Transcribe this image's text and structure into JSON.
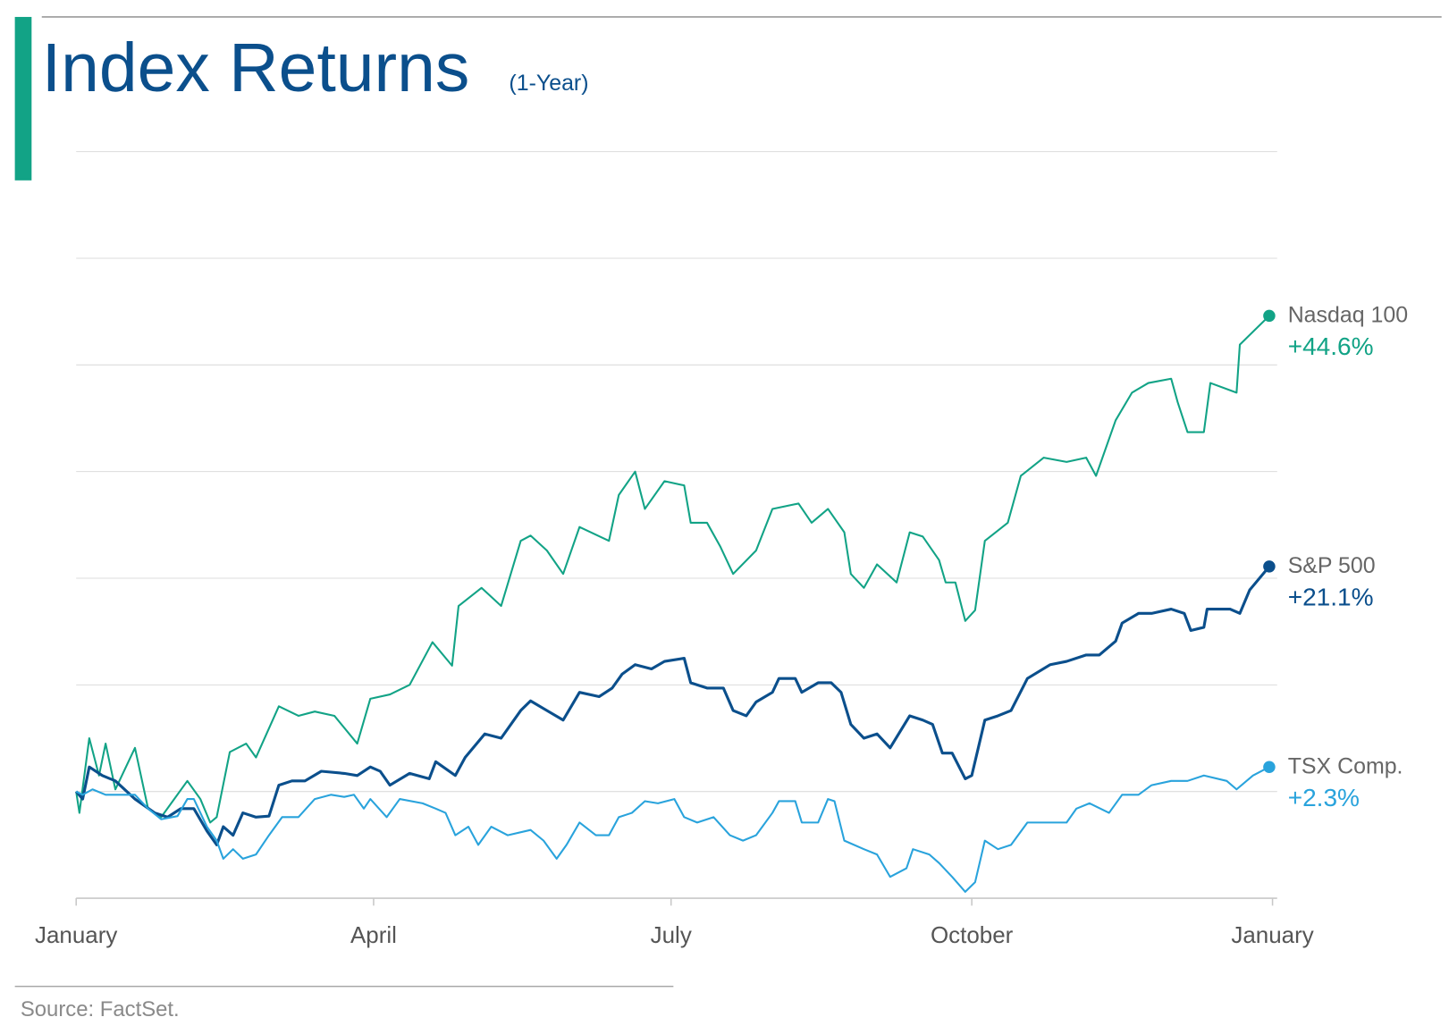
{
  "chart_data": {
    "type": "line",
    "title": "Index Returns",
    "subtitle": "(1-Year)",
    "source": "Source: FactSet.",
    "xlim": [
      0,
      366
    ],
    "xticks": [
      {
        "value": 0,
        "label": "January"
      },
      {
        "value": 91,
        "label": "April"
      },
      {
        "value": 182,
        "label": "July"
      },
      {
        "value": 274,
        "label": "October"
      },
      {
        "value": 366,
        "label": "January"
      }
    ],
    "ylim": [
      -10,
      60
    ],
    "yticks": [
      -10,
      0,
      10,
      20,
      30,
      40,
      50,
      60
    ],
    "grid": true,
    "series": [
      {
        "name": "Nasdaq 100",
        "color": "#12a386",
        "end_label": "+44.6%",
        "x": [
          0,
          1,
          4,
          7,
          9,
          12,
          18,
          22,
          26,
          34,
          38,
          41,
          43,
          47,
          52,
          55,
          62,
          68,
          73,
          79,
          86,
          90,
          96,
          102,
          109,
          115,
          117,
          124,
          130,
          136,
          139,
          144,
          149,
          154,
          163,
          166,
          171,
          174,
          180,
          186,
          188,
          193,
          197,
          201,
          208,
          213,
          221,
          225,
          230,
          235,
          237,
          241,
          245,
          251,
          255,
          259,
          264,
          266,
          269,
          272,
          275,
          278,
          285,
          289,
          296,
          303,
          309,
          312,
          318,
          323,
          328,
          335,
          337,
          340,
          345,
          347,
          355,
          356,
          362,
          365
        ],
        "values": [
          0,
          -2.0,
          5.0,
          1.5,
          4.5,
          0.2,
          4.1,
          -1.6,
          -2.4,
          1.0,
          -0.7,
          -2.9,
          -2.4,
          3.7,
          4.5,
          3.2,
          8.0,
          7.1,
          7.5,
          7.1,
          4.5,
          8.7,
          9.1,
          10.0,
          14.0,
          11.8,
          17.4,
          19.1,
          17.4,
          23.5,
          24.0,
          22.6,
          20.4,
          24.8,
          23.5,
          27.8,
          30.0,
          26.5,
          29.1,
          28.7,
          25.2,
          25.2,
          23.0,
          20.4,
          22.6,
          26.5,
          27.0,
          25.2,
          26.5,
          24.3,
          20.4,
          19.1,
          21.3,
          19.6,
          24.3,
          23.9,
          21.7,
          19.6,
          19.6,
          16.0,
          17.0,
          23.5,
          25.2,
          29.6,
          31.3,
          30.9,
          31.3,
          29.6,
          34.8,
          37.4,
          38.3,
          38.7,
          36.5,
          33.7,
          33.7,
          38.3,
          37.4,
          41.9,
          43.7,
          44.6
        ]
      },
      {
        "name": "S&P 500",
        "color": "#0b4f8c",
        "end_label": "+21.1%",
        "x": [
          0,
          2,
          4,
          8,
          12,
          18,
          24,
          28,
          32,
          36,
          40,
          43,
          45,
          48,
          51,
          55,
          59,
          62,
          66,
          70,
          75,
          82,
          86,
          90,
          93,
          96,
          102,
          108,
          110,
          116,
          119,
          125,
          130,
          136,
          139,
          144,
          149,
          154,
          160,
          164,
          167,
          171,
          176,
          180,
          186,
          188,
          193,
          198,
          201,
          205,
          208,
          213,
          215,
          220,
          222,
          227,
          231,
          234,
          237,
          241,
          245,
          249,
          255,
          259,
          262,
          265,
          268,
          272,
          274,
          278,
          282,
          286,
          291,
          298,
          303,
          309,
          313,
          318,
          320,
          325,
          329,
          335,
          339,
          341,
          345,
          346,
          353,
          356,
          359,
          365
        ],
        "values": [
          0,
          -0.7,
          2.3,
          1.5,
          1.0,
          -0.7,
          -2.0,
          -2.4,
          -1.6,
          -1.6,
          -3.7,
          -5.0,
          -3.3,
          -4.1,
          -2.0,
          -2.4,
          -2.3,
          0.6,
          1.0,
          1.0,
          1.9,
          1.7,
          1.5,
          2.3,
          1.9,
          0.6,
          1.7,
          1.2,
          2.8,
          1.5,
          3.2,
          5.4,
          5.0,
          7.6,
          8.5,
          7.6,
          6.7,
          9.3,
          8.9,
          9.7,
          11.0,
          11.9,
          11.5,
          12.2,
          12.5,
          10.2,
          9.7,
          9.7,
          7.6,
          7.1,
          8.4,
          9.3,
          10.6,
          10.6,
          9.3,
          10.2,
          10.2,
          9.3,
          6.3,
          5.0,
          5.4,
          4.1,
          7.1,
          6.7,
          6.3,
          3.6,
          3.6,
          1.2,
          1.5,
          6.7,
          7.1,
          7.6,
          10.6,
          11.9,
          12.2,
          12.8,
          12.8,
          14.1,
          15.8,
          16.7,
          16.7,
          17.1,
          16.7,
          15.1,
          15.4,
          17.1,
          17.1,
          16.7,
          18.9,
          21.1
        ]
      },
      {
        "name": "TSX Comp.",
        "color": "#29a3dc",
        "end_label": "+2.3%",
        "x": [
          0,
          2,
          5,
          9,
          14,
          18,
          22,
          26,
          31,
          34,
          36,
          40,
          43,
          45,
          48,
          51,
          55,
          59,
          63,
          68,
          73,
          78,
          82,
          85,
          88,
          90,
          95,
          99,
          106,
          110,
          113,
          116,
          120,
          123,
          127,
          132,
          139,
          143,
          147,
          150,
          154,
          159,
          163,
          166,
          170,
          174,
          178,
          183,
          186,
          190,
          195,
          200,
          204,
          208,
          213,
          215,
          220,
          222,
          227,
          230,
          232,
          235,
          241,
          245,
          249,
          254,
          256,
          261,
          264,
          268,
          272,
          275,
          278,
          282,
          286,
          291,
          298,
          303,
          306,
          310,
          316,
          320,
          325,
          329,
          335,
          340,
          345,
          352,
          355,
          360,
          365
        ],
        "values": [
          0,
          -0.3,
          0.2,
          -0.3,
          -0.3,
          -0.3,
          -1.6,
          -2.6,
          -2.3,
          -0.7,
          -0.7,
          -3.3,
          -4.6,
          -6.3,
          -5.4,
          -6.3,
          -5.9,
          -4.1,
          -2.4,
          -2.4,
          -0.7,
          -0.3,
          -0.5,
          -0.3,
          -1.6,
          -0.7,
          -2.4,
          -0.7,
          -1.1,
          -1.6,
          -2.0,
          -4.1,
          -3.3,
          -5.0,
          -3.3,
          -4.1,
          -3.6,
          -4.6,
          -6.3,
          -5.0,
          -2.9,
          -4.1,
          -4.1,
          -2.4,
          -2.0,
          -0.9,
          -1.1,
          -0.7,
          -2.4,
          -2.9,
          -2.4,
          -4.1,
          -4.6,
          -4.1,
          -2.0,
          -0.9,
          -0.9,
          -2.9,
          -2.9,
          -0.7,
          -0.9,
          -4.6,
          -5.4,
          -5.9,
          -8.0,
          -7.2,
          -5.4,
          -5.9,
          -6.7,
          -8.0,
          -9.4,
          -8.5,
          -4.6,
          -5.4,
          -5.0,
          -2.9,
          -2.9,
          -2.9,
          -1.6,
          -1.1,
          -2.0,
          -0.3,
          -0.3,
          0.6,
          1.0,
          1.0,
          1.5,
          1.0,
          0.2,
          1.5,
          2.3
        ]
      }
    ]
  }
}
